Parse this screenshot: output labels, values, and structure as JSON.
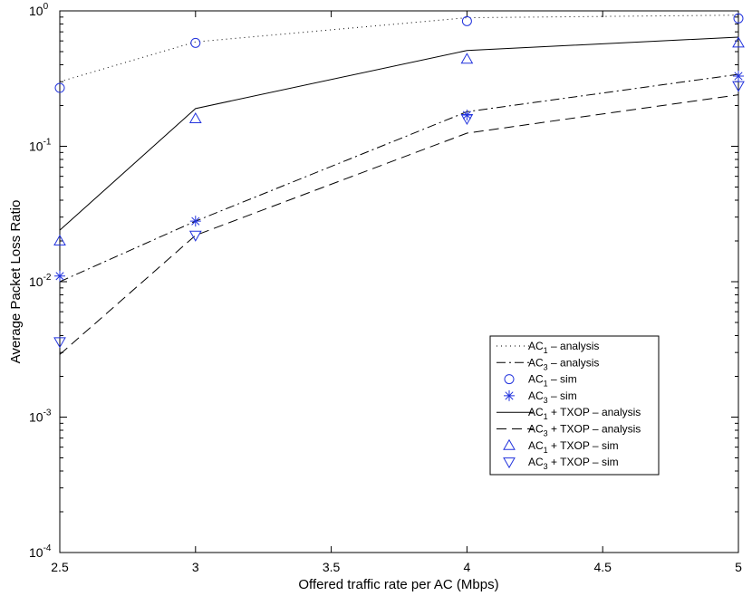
{
  "chart_data": {
    "type": "line",
    "title": "",
    "xlabel": "Offered traffic rate per AC (Mbps)",
    "ylabel": "Average Packet Loss Ratio",
    "xlim": [
      2.5,
      5
    ],
    "ylim": [
      0.0001,
      1
    ],
    "yscale": "log",
    "grid": false,
    "legend_position": "lower-right",
    "x_ticks": [
      2.5,
      3,
      3.5,
      4,
      4.5,
      5
    ],
    "x_tick_labels": [
      "2.5",
      "3",
      "3.5",
      "4",
      "4.5",
      "5"
    ],
    "y_ticks": [
      {
        "value": 0.0001,
        "base": "10",
        "exp": "-4"
      },
      {
        "value": 0.001,
        "base": "10",
        "exp": "-3"
      },
      {
        "value": 0.01,
        "base": "10",
        "exp": "-2"
      },
      {
        "value": 0.1,
        "base": "10",
        "exp": "-1"
      },
      {
        "value": 1,
        "base": "10",
        "exp": "0"
      }
    ],
    "series": [
      {
        "id": "ac1-analysis",
        "name_main": "AC",
        "name_sub": "1",
        "name_rest": " – analysis",
        "kind": "line",
        "style": "dotted",
        "color": "#000000",
        "x": [
          2.5,
          3,
          4,
          5
        ],
        "values": [
          0.3,
          0.59,
          0.89,
          0.93
        ]
      },
      {
        "id": "ac3-analysis",
        "name_main": "AC",
        "name_sub": "3",
        "name_rest": " – analysis",
        "kind": "line",
        "style": "dashdot",
        "color": "#000000",
        "x": [
          2.5,
          3,
          4,
          5
        ],
        "values": [
          0.01,
          0.028,
          0.18,
          0.34
        ]
      },
      {
        "id": "ac1-sim",
        "name_main": "AC",
        "name_sub": "1",
        "name_rest": " – sim",
        "kind": "marker",
        "marker": "circle",
        "color": "#2233dd",
        "x": [
          2.5,
          3,
          4,
          5
        ],
        "values": [
          0.27,
          0.58,
          0.84,
          0.88
        ]
      },
      {
        "id": "ac3-sim",
        "name_main": "AC",
        "name_sub": "3",
        "name_rest": " – sim",
        "kind": "marker",
        "marker": "star",
        "color": "#2233dd",
        "x": [
          2.5,
          3,
          4,
          5
        ],
        "values": [
          0.011,
          0.028,
          0.17,
          0.33
        ]
      },
      {
        "id": "ac1-txop-analysis",
        "name_main": "AC",
        "name_sub": "1",
        "name_rest": " + TXOP – analysis",
        "kind": "line",
        "style": "solid",
        "color": "#000000",
        "x": [
          2.5,
          3,
          4,
          5
        ],
        "values": [
          0.024,
          0.19,
          0.51,
          0.64
        ]
      },
      {
        "id": "ac3-txop-analysis",
        "name_main": "AC",
        "name_sub": "3",
        "name_rest": " + TXOP – analysis",
        "kind": "line",
        "style": "dashed",
        "color": "#000000",
        "x": [
          2.5,
          3,
          4,
          5
        ],
        "values": [
          0.0029,
          0.022,
          0.125,
          0.24
        ]
      },
      {
        "id": "ac1-txop-sim",
        "name_main": "AC",
        "name_sub": "1",
        "name_rest": " + TXOP – sim",
        "kind": "marker",
        "marker": "triangle-up",
        "color": "#2233dd",
        "x": [
          2.5,
          3,
          4,
          5
        ],
        "values": [
          0.02,
          0.16,
          0.44,
          0.58
        ]
      },
      {
        "id": "ac3-txop-sim",
        "name_main": "AC",
        "name_sub": "3",
        "name_rest": " + TXOP – sim",
        "kind": "marker",
        "marker": "triangle-down",
        "color": "#2233dd",
        "x": [
          2.5,
          3,
          4,
          5
        ],
        "values": [
          0.0036,
          0.022,
          0.16,
          0.28
        ]
      }
    ]
  }
}
